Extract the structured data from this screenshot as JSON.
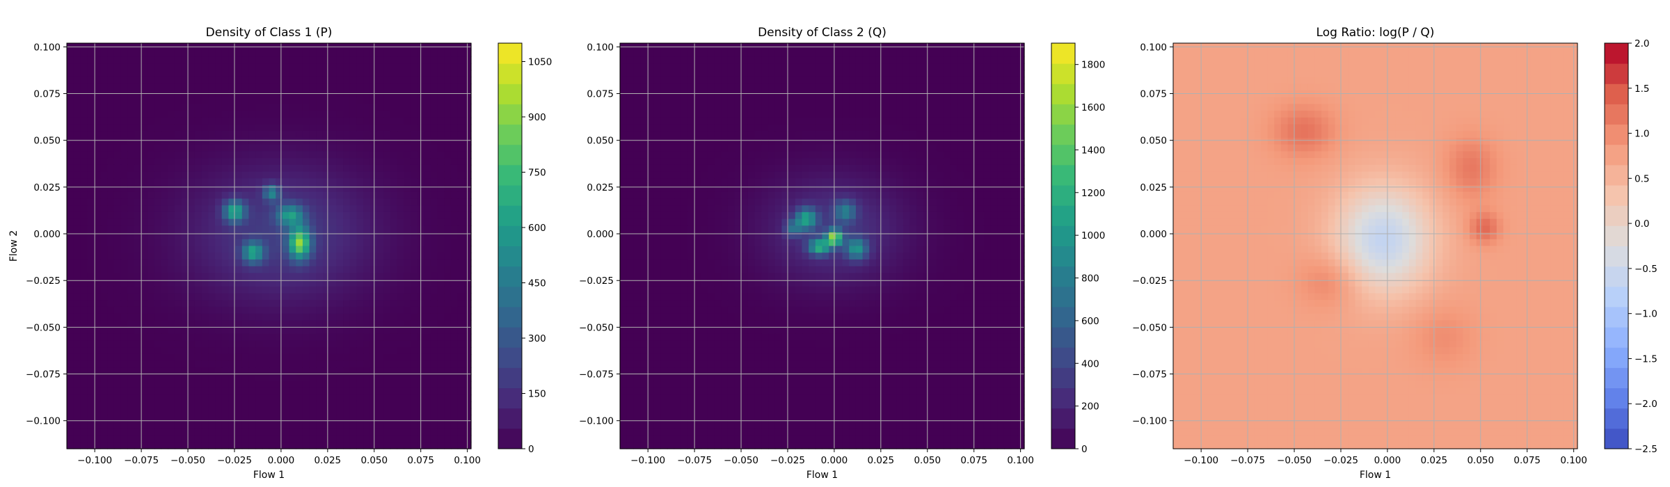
{
  "chart_data": [
    {
      "type": "heatmap",
      "title": "Density of Class 1 (P)",
      "xlabel": "Flow 1",
      "ylabel": "Flow 2",
      "xlim": [
        -0.115,
        0.102
      ],
      "ylim": [
        -0.115,
        0.102
      ],
      "x_ticks": [
        "−0.100",
        "−0.075",
        "−0.050",
        "−0.025",
        "0.000",
        "0.025",
        "0.050",
        "0.075",
        "0.100"
      ],
      "y_ticks": [
        "−0.100",
        "−0.075",
        "−0.050",
        "−0.025",
        "0.000",
        "0.025",
        "0.050",
        "0.075",
        "0.100"
      ],
      "grid": true,
      "colormap": "viridis",
      "colorbar": {
        "min": 0,
        "max": 1100,
        "ticks": [
          "0",
          "150",
          "300",
          "450",
          "600",
          "750",
          "900",
          "1050"
        ]
      },
      "blobs": [
        {
          "x": 0.0,
          "y": 0.0,
          "sx": 0.034,
          "sy": 0.025,
          "amp": 200
        },
        {
          "x": 0.01,
          "y": -0.005,
          "sx": 0.004,
          "sy": 0.006,
          "amp": 750
        },
        {
          "x": -0.025,
          "y": 0.012,
          "sx": 0.004,
          "sy": 0.004,
          "amp": 550
        },
        {
          "x": -0.015,
          "y": -0.01,
          "sx": 0.004,
          "sy": 0.004,
          "amp": 500
        },
        {
          "x": 0.005,
          "y": 0.01,
          "sx": 0.005,
          "sy": 0.004,
          "amp": 450
        },
        {
          "x": -0.005,
          "y": 0.022,
          "sx": 0.003,
          "sy": 0.003,
          "amp": 400
        }
      ]
    },
    {
      "type": "heatmap",
      "title": "Density of Class 2 (Q)",
      "xlabel": "Flow 1",
      "ylabel": "",
      "xlim": [
        -0.115,
        0.102
      ],
      "ylim": [
        -0.115,
        0.102
      ],
      "x_ticks": [
        "−0.100",
        "−0.075",
        "−0.050",
        "−0.025",
        "0.000",
        "0.025",
        "0.050",
        "0.075",
        "0.100"
      ],
      "y_ticks": [
        "−0.100",
        "−0.075",
        "−0.050",
        "−0.025",
        "0.000",
        "0.025",
        "0.050",
        "0.075",
        "0.100"
      ],
      "grid": true,
      "colormap": "viridis",
      "colorbar": {
        "min": 0,
        "max": 1900,
        "ticks": [
          "0",
          "200",
          "400",
          "600",
          "800",
          "1000",
          "1200",
          "1400",
          "1600",
          "1800"
        ]
      },
      "blobs": [
        {
          "x": 0.0,
          "y": 0.002,
          "sx": 0.026,
          "sy": 0.02,
          "amp": 300
        },
        {
          "x": 0.0,
          "y": -0.002,
          "sx": 0.003,
          "sy": 0.003,
          "amp": 1400
        },
        {
          "x": -0.015,
          "y": 0.008,
          "sx": 0.004,
          "sy": 0.004,
          "amp": 900
        },
        {
          "x": -0.008,
          "y": -0.007,
          "sx": 0.004,
          "sy": 0.003,
          "amp": 1000
        },
        {
          "x": 0.012,
          "y": -0.008,
          "sx": 0.004,
          "sy": 0.004,
          "amp": 800
        },
        {
          "x": 0.006,
          "y": 0.012,
          "sx": 0.004,
          "sy": 0.004,
          "amp": 600
        },
        {
          "x": -0.022,
          "y": 0.003,
          "sx": 0.003,
          "sy": 0.003,
          "amp": 500
        }
      ]
    },
    {
      "type": "heatmap",
      "title": "Log Ratio: log(P / Q)",
      "xlabel": "Flow 1",
      "ylabel": "",
      "xlim": [
        -0.115,
        0.102
      ],
      "ylim": [
        -0.115,
        0.102
      ],
      "x_ticks": [
        "−0.100",
        "−0.075",
        "−0.050",
        "−0.025",
        "0.000",
        "0.025",
        "0.050",
        "0.075",
        "0.100"
      ],
      "y_ticks": [
        "−0.100",
        "−0.075",
        "−0.050",
        "−0.025",
        "0.000",
        "0.025",
        "0.050",
        "0.075",
        "0.100"
      ],
      "grid": true,
      "colormap": "coolwarm",
      "colorbar": {
        "min": -2.5,
        "max": 2.0,
        "ticks": [
          "−2.5",
          "−2.0",
          "−1.5",
          "−1.0",
          "−0.5",
          "0.0",
          "0.5",
          "1.0",
          "1.5",
          "2.0"
        ]
      },
      "base_value": 0.75,
      "blobs": [
        {
          "x": -0.002,
          "y": -0.003,
          "sx": 0.018,
          "sy": 0.02,
          "amp": -1.4
        },
        {
          "x": -0.045,
          "y": 0.055,
          "sx": 0.012,
          "sy": 0.01,
          "amp": 0.5
        },
        {
          "x": 0.045,
          "y": 0.035,
          "sx": 0.01,
          "sy": 0.012,
          "amp": 0.45
        },
        {
          "x": -0.03,
          "y": -0.025,
          "sx": 0.012,
          "sy": 0.01,
          "amp": 0.4
        },
        {
          "x": 0.052,
          "y": 0.003,
          "sx": 0.006,
          "sy": 0.006,
          "amp": 0.6
        },
        {
          "x": 0.03,
          "y": -0.055,
          "sx": 0.012,
          "sy": 0.012,
          "amp": 0.25
        }
      ]
    }
  ]
}
